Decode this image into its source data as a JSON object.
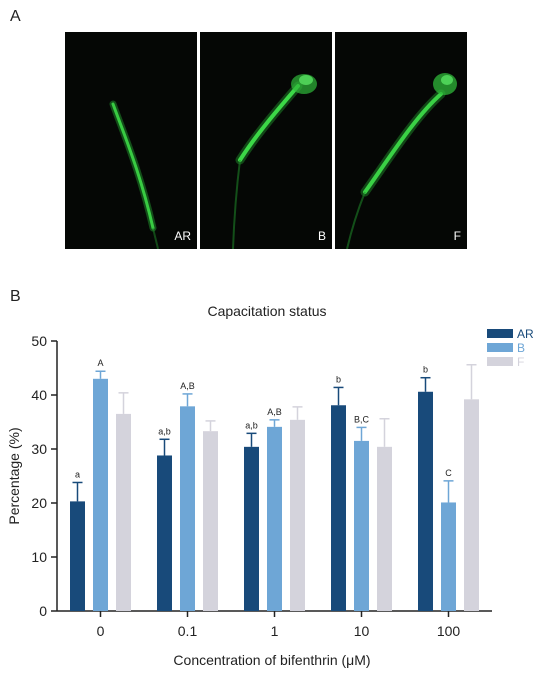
{
  "panels": {
    "a_label": "A",
    "b_label": "B",
    "micrographs": [
      {
        "label": "AR"
      },
      {
        "label": "B"
      },
      {
        "label": "F"
      }
    ]
  },
  "colors": {
    "AR": "#184a7a",
    "B": "#6ea6d6",
    "F": "#d4d3dc",
    "sperm_fluorescence": "#3fe04a",
    "micrograph_background": "#050705"
  },
  "chart_data": {
    "type": "bar",
    "title": "Capacitation status",
    "xlabel": "Concentration of bifenthrin (μM)",
    "ylabel": "Percentage (%)",
    "ylim": [
      0,
      50
    ],
    "yticks": [
      0,
      10,
      20,
      30,
      40,
      50
    ],
    "categories": [
      "0",
      "0.1",
      "1",
      "10",
      "100"
    ],
    "legend_position": "top-right",
    "series": [
      {
        "name": "AR",
        "values": [
          20.3,
          28.8,
          30.4,
          38.1,
          40.6
        ],
        "errors": [
          3.5,
          3.0,
          2.5,
          3.3,
          2.6
        ],
        "annotations": [
          "a",
          "a,b",
          "a,b",
          "b",
          "b"
        ]
      },
      {
        "name": "B",
        "values": [
          43.0,
          37.9,
          34.1,
          31.5,
          20.1
        ],
        "errors": [
          1.4,
          2.3,
          1.3,
          2.5,
          4.0
        ],
        "annotations": [
          "A",
          "A,B",
          "A,B",
          "B,C",
          "C"
        ]
      },
      {
        "name": "F",
        "values": [
          36.5,
          33.3,
          35.4,
          30.4,
          39.2
        ],
        "errors": [
          3.9,
          1.9,
          2.4,
          5.2,
          6.4
        ],
        "annotations": [
          "",
          "",
          "",
          "",
          ""
        ]
      }
    ]
  }
}
